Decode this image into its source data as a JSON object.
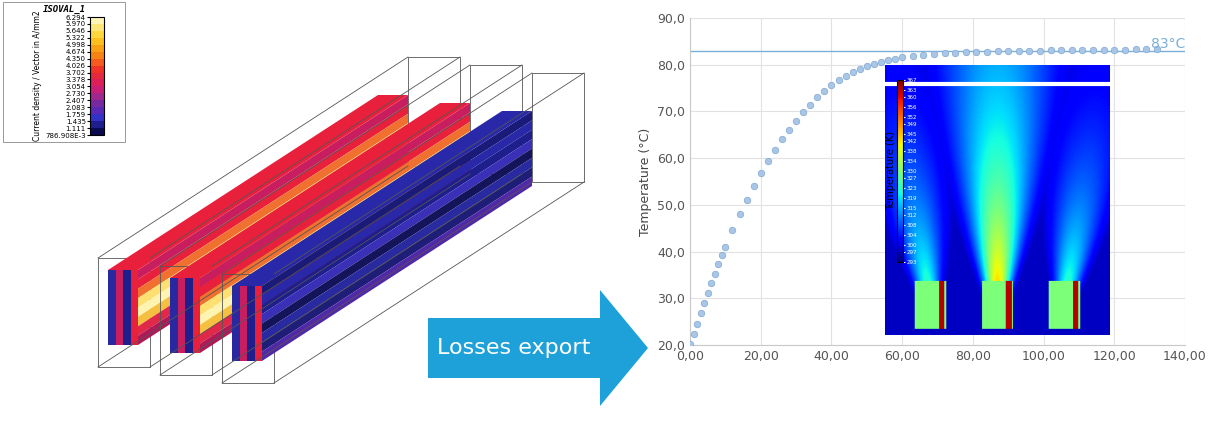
{
  "current_density_map": {
    "title": "ISOVAL_1",
    "label": "Current density / Vector in A/mm2",
    "range": [
      0.786908,
      6.294
    ],
    "ticks": [
      6.294,
      {
        "value": 5.97,
        "label": "5.970"
      },
      5.646,
      5.322,
      4.998,
      4.674,
      {
        "value": 4.35,
        "label": "4.350"
      },
      4.026,
      3.702,
      3.378,
      3.054,
      {
        "value": 2.73,
        "label": "2.730"
      },
      2.407,
      2.083,
      1.759,
      1.435,
      1.111,
      {
        "value": 0.786908,
        "label": "786.908E-3"
      }
    ]
  },
  "arrow": {
    "label": "Losses export"
  },
  "chart_data": {
    "type": "scatter",
    "ylabel": "Temperature (°C)",
    "x": [
      0,
      1,
      2,
      3,
      4,
      5,
      6,
      7,
      8,
      9,
      10,
      12,
      14,
      16,
      18,
      20,
      22,
      24,
      26,
      28,
      30,
      32,
      34,
      36,
      38,
      40,
      42,
      44,
      46,
      48,
      50,
      52,
      54,
      56,
      58,
      60,
      63,
      66,
      69,
      72,
      75,
      78,
      81,
      84,
      87,
      90,
      93,
      96,
      99,
      102,
      105,
      108,
      111,
      114,
      117,
      120,
      123,
      126,
      129,
      132
    ],
    "values": [
      20.2,
      22.3,
      24.6,
      26.8,
      29.0,
      31.1,
      33.2,
      35.2,
      37.3,
      39.2,
      41.0,
      44.6,
      48.0,
      51.1,
      54.0,
      56.8,
      59.4,
      61.8,
      64.0,
      66.0,
      68.0,
      69.8,
      71.4,
      73.0,
      74.4,
      75.6,
      76.7,
      77.6,
      78.4,
      79.1,
      79.7,
      80.2,
      80.6,
      81.0,
      81.3,
      81.6,
      81.9,
      82.1,
      82.3,
      82.5,
      82.6,
      82.7,
      82.8,
      82.8,
      82.9,
      82.9,
      83.0,
      83.0,
      83.0,
      83.1,
      83.1,
      83.1,
      83.1,
      83.2,
      83.2,
      83.2,
      83.2,
      83.3,
      83.3,
      83.3
    ],
    "color": "#a9c6e6",
    "marker": "o",
    "xlim": [
      0,
      140
    ],
    "ylim": [
      20,
      90
    ],
    "xticks": [
      {
        "value": 0,
        "label": "0,00"
      },
      {
        "value": 20,
        "label": "20,00"
      },
      {
        "value": 40,
        "label": "40,00"
      },
      {
        "value": 60,
        "label": "60,00"
      },
      {
        "value": 80,
        "label": "80,00"
      },
      {
        "value": 100,
        "label": "100,00"
      },
      {
        "value": 120,
        "label": "120,00"
      },
      {
        "value": 140,
        "label": "140,00"
      }
    ],
    "yticks": [
      {
        "value": 20,
        "label": "20,0"
      },
      {
        "value": 30,
        "label": "30,0"
      },
      {
        "value": 40,
        "label": "40,0"
      },
      {
        "value": 50,
        "label": "50,0"
      },
      {
        "value": 60,
        "label": "60,0"
      },
      {
        "value": 70,
        "label": "70,0"
      },
      {
        "value": 80,
        "label": "80,0"
      },
      {
        "value": 90,
        "label": "90,0"
      }
    ],
    "grid": true,
    "reference_line": {
      "value": 83,
      "label": "83°C",
      "color": "#7ab0d8"
    }
  },
  "inset": {
    "colorbar": {
      "label": "Temperature (K)",
      "range": [
        293,
        367
      ],
      "ticks": [
        367,
        363,
        360,
        356,
        352,
        349,
        345,
        342,
        338,
        334,
        330,
        327,
        323,
        319,
        315,
        312,
        308,
        304,
        300,
        297,
        293
      ]
    }
  }
}
